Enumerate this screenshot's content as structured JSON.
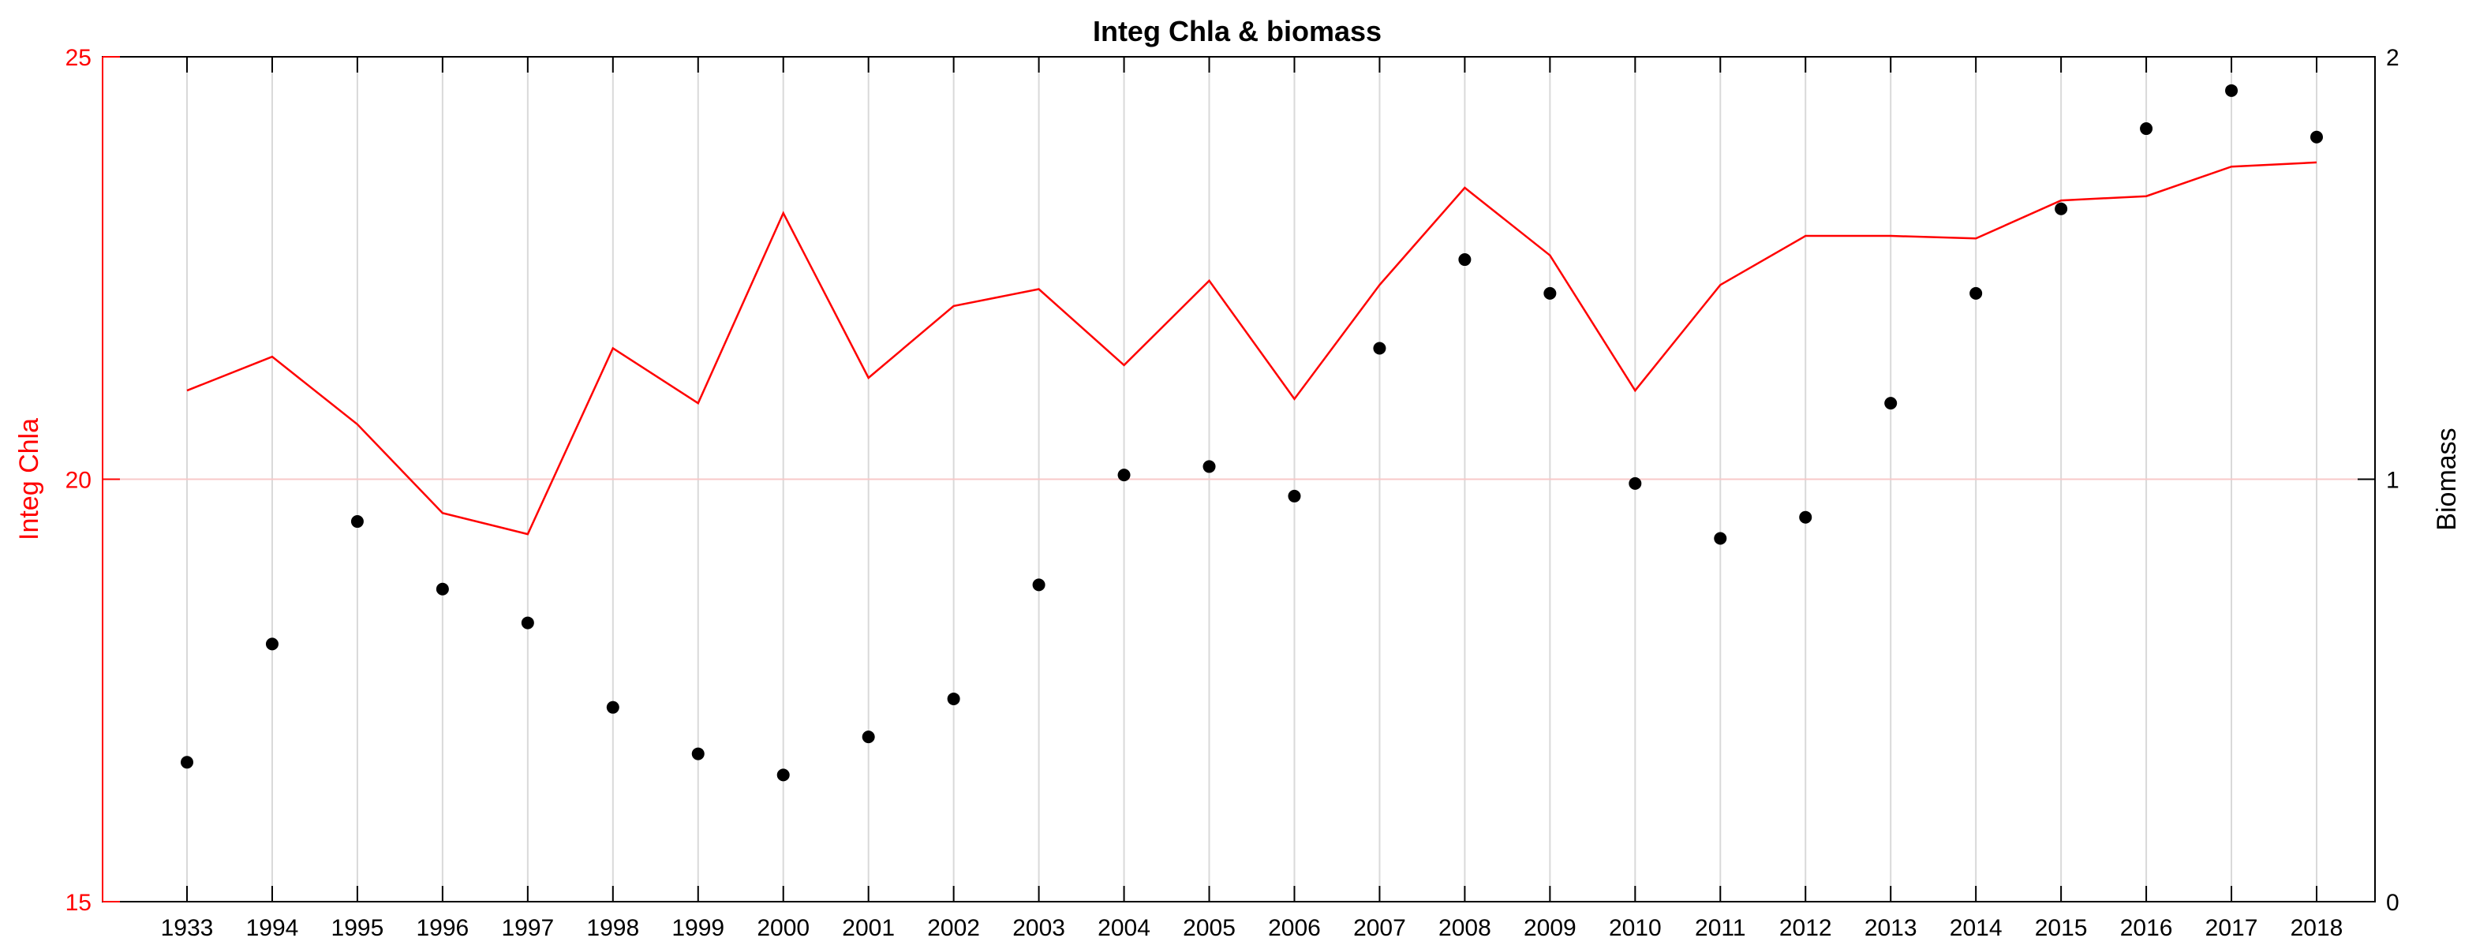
{
  "chart_data": {
    "type": "line+scatter",
    "title": "Integ Chla & biomass",
    "categories": [
      "1933",
      "1994",
      "1995",
      "1996",
      "1997",
      "1998",
      "1999",
      "2000",
      "2001",
      "2002",
      "2003",
      "2004",
      "2005",
      "2006",
      "2007",
      "2008",
      "2009",
      "2010",
      "2011",
      "2012",
      "2013",
      "2014",
      "2015",
      "2016",
      "2017",
      "2018"
    ],
    "left_axis": {
      "label": "Integ Chla",
      "color": "#ff0000",
      "ylim": [
        15,
        25
      ],
      "ticks": [
        "15",
        "20",
        "25"
      ],
      "reference_line": 20
    },
    "right_axis": {
      "label": "Biomass",
      "color": "#000000",
      "ylim": [
        0,
        2
      ],
      "ticks": [
        "0",
        "1",
        "2"
      ]
    },
    "series": [
      {
        "axis": "left",
        "type": "line",
        "color": "#ff0000",
        "values": [
          21.05,
          21.45,
          20.65,
          19.6,
          19.35,
          21.55,
          20.9,
          23.15,
          21.2,
          22.05,
          22.25,
          21.35,
          22.35,
          20.95,
          22.3,
          23.45,
          22.65,
          21.05,
          22.3,
          22.88,
          22.88,
          22.85,
          23.3,
          23.35,
          23.7,
          23.75
        ]
      },
      {
        "axis": "right",
        "type": "scatter",
        "color": "#000000",
        "values": [
          0.33,
          0.61,
          0.9,
          0.74,
          0.66,
          0.46,
          0.35,
          0.3,
          0.39,
          0.48,
          0.75,
          1.01,
          1.03,
          0.96,
          1.31,
          1.52,
          1.44,
          0.99,
          0.86,
          0.91,
          1.18,
          1.44,
          1.64,
          1.83,
          1.92,
          1.81
        ]
      }
    ],
    "grid": {
      "x": true,
      "y": false
    }
  }
}
